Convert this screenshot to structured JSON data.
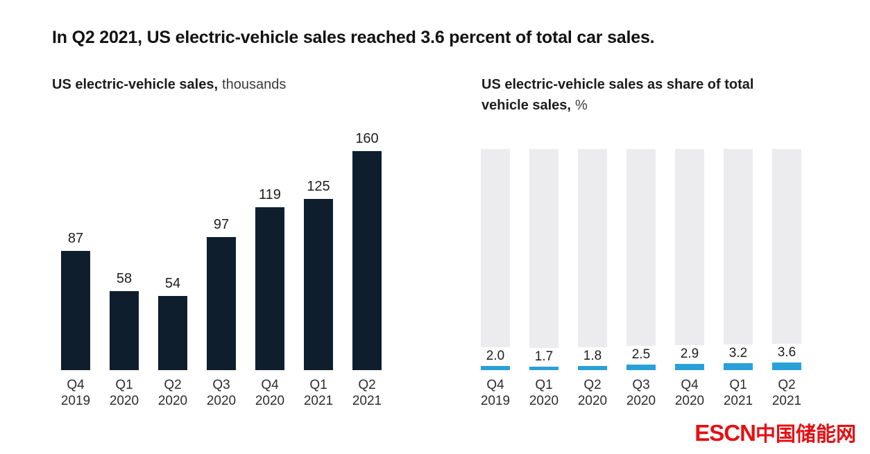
{
  "page": {
    "title": "In Q2 2021, US electric-vehicle sales reached 3.6 percent of total car sales."
  },
  "subtitles": {
    "left_bold": "US electric-vehicle sales,",
    "left_unit": "thousands",
    "right_bold_line1": "US electric-vehicle sales as share of total",
    "right_bold_line2": "vehicle sales,",
    "right_unit": "%"
  },
  "colors": {
    "navy_bar": "#0f1e2d",
    "blue_bar": "#29a0d8",
    "gray_background_bar": "#ececee",
    "watermark_red": "#e60f13",
    "title_text": "#121212"
  },
  "chart_data": [
    {
      "type": "bar",
      "title": "US electric-vehicle sales, thousands",
      "categories": [
        "Q4 2019",
        "Q1 2020",
        "Q2 2020",
        "Q3 2020",
        "Q4 2020",
        "Q1 2021",
        "Q2 2021"
      ],
      "values": [
        87,
        58,
        54,
        97,
        119,
        125,
        160
      ],
      "value_labels": [
        "87",
        "58",
        "54",
        "97",
        "119",
        "125",
        "160"
      ],
      "ylim": [
        0,
        160
      ],
      "grid": false,
      "legend": "none",
      "bar_color": "#0f1e2d",
      "data_labels_position": "above-bar"
    },
    {
      "type": "bar",
      "title": "US electric-vehicle sales as share of total vehicle sales, %",
      "categories": [
        "Q4 2019",
        "Q1 2020",
        "Q2 2020",
        "Q3 2020",
        "Q4 2020",
        "Q1 2021",
        "Q2 2021"
      ],
      "values": [
        2.0,
        1.7,
        1.8,
        2.5,
        2.9,
        3.2,
        3.6
      ],
      "value_labels": [
        "2.0",
        "1.7",
        "1.8",
        "2.5",
        "2.9",
        "3.2",
        "3.6"
      ],
      "ylim": [
        0,
        100
      ],
      "background_bar_value": 100,
      "background_bar_color": "#ececee",
      "grid": false,
      "legend": "none",
      "bar_color": "#29a0d8",
      "data_labels_position": "above-share-segment"
    }
  ],
  "watermark": {
    "latin": "ESCN",
    "chinese": "中国储能网"
  }
}
